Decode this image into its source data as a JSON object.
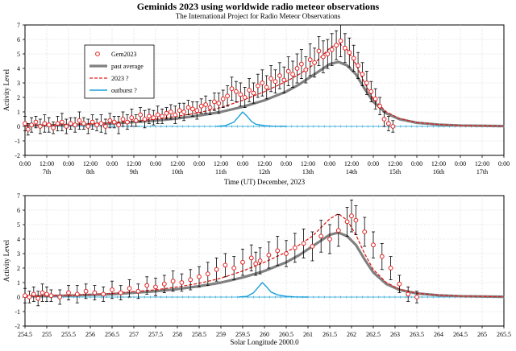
{
  "title": "Geminids  2023 using worldwide  radio  meteor observations",
  "subtitle": "The International Project for Radio Meteor Observations",
  "legend": {
    "gem": "Gem2023",
    "past": "past average",
    "y2023": "2023 ?",
    "outburst": "outburst ?"
  },
  "colors": {
    "points": "#e02020",
    "past": "#808080",
    "y2023": "#e02020",
    "outburst": "#1aa0d8",
    "errorbars": "#000000"
  },
  "chart_data": [
    {
      "type": "line",
      "xlabel": "Time (UT) December, 2023",
      "ylabel": "Activity Level",
      "ylim": [
        -2,
        7
      ],
      "yticks": [
        "-2",
        "-1",
        "0",
        "1",
        "2",
        "3",
        "4",
        "5",
        "6",
        "7"
      ],
      "grid": true,
      "legend_position": "top-left",
      "x_tick_labels": [
        "0:00",
        "12:00",
        "0:00",
        "12:00",
        "0:00",
        "12:00",
        "0:00",
        "12:00",
        "0:00",
        "12:00",
        "0:00",
        "12:00",
        "0:00",
        "12:00",
        "0:00",
        "12:00",
        "0:00",
        "12:00",
        "0:00",
        "12:00",
        "0:00",
        "12:00",
        "0:00"
      ],
      "day_labels": [
        "7th",
        "8th",
        "9th",
        "10th",
        "11th",
        "12th",
        "13th",
        "14th",
        "15th",
        "16th",
        "17th"
      ],
      "xlim_days": [
        7.0,
        18.0
      ],
      "series": [
        {
          "name": "Gem2023",
          "kind": "points_with_errorbars",
          "x": [
            7.0,
            7.07,
            7.15,
            7.25,
            7.35,
            7.45,
            7.55,
            7.65,
            7.75,
            7.85,
            7.95,
            8.05,
            8.15,
            8.25,
            8.35,
            8.45,
            8.55,
            8.65,
            8.75,
            8.85,
            8.95,
            9.05,
            9.15,
            9.25,
            9.35,
            9.45,
            9.55,
            9.65,
            9.75,
            9.85,
            9.95,
            10.05,
            10.15,
            10.25,
            10.35,
            10.45,
            10.55,
            10.65,
            10.75,
            10.85,
            10.95,
            11.05,
            11.15,
            11.25,
            11.35,
            11.45,
            11.55,
            11.65,
            11.75,
            11.85,
            11.95,
            12.05,
            12.15,
            12.25,
            12.35,
            12.45,
            12.55,
            12.65,
            12.75,
            12.85,
            12.95,
            13.05,
            13.15,
            13.25,
            13.35,
            13.45,
            13.55,
            13.65,
            13.75,
            13.85,
            13.95,
            14.05,
            14.15,
            14.25,
            14.35,
            14.45,
            14.55,
            14.65,
            14.75,
            14.85,
            14.95,
            15.05,
            15.15,
            15.25,
            15.35,
            15.45
          ],
          "y": [
            0.2,
            -0.2,
            0.1,
            0.3,
            0.0,
            0.2,
            0.1,
            -0.1,
            0.2,
            0.3,
            0.0,
            0.2,
            0.1,
            0.4,
            0.2,
            0.0,
            0.3,
            0.1,
            0.2,
            0.0,
            0.4,
            0.3,
            0.1,
            0.5,
            0.3,
            0.6,
            0.4,
            0.8,
            0.5,
            0.7,
            0.6,
            0.8,
            0.7,
            0.9,
            1.0,
            0.8,
            1.1,
            1.0,
            1.3,
            1.2,
            1.1,
            1.4,
            1.5,
            1.3,
            1.7,
            1.6,
            1.9,
            2.1,
            2.6,
            2.4,
            2.2,
            2.0,
            2.5,
            2.3,
            2.8,
            3.0,
            2.7,
            3.3,
            3.1,
            3.5,
            3.2,
            3.8,
            3.6,
            4.0,
            4.3,
            3.9,
            4.6,
            4.4,
            5.2,
            4.8,
            5.0,
            5.3,
            5.6,
            5.9,
            5.4,
            5.1,
            4.7,
            4.2,
            3.6,
            3.0,
            2.4,
            1.9,
            1.4,
            0.5,
            0.2,
            0.0
          ],
          "err": [
            0.5,
            0.4,
            0.5,
            0.4,
            0.5,
            0.6,
            0.5,
            0.4,
            0.5,
            0.6,
            0.5,
            0.4,
            0.5,
            0.6,
            0.4,
            0.5,
            0.5,
            0.4,
            0.6,
            0.5,
            0.5,
            0.4,
            0.6,
            0.5,
            0.5,
            0.6,
            0.4,
            0.5,
            0.6,
            0.5,
            0.5,
            0.6,
            0.5,
            0.4,
            0.5,
            0.6,
            0.5,
            0.6,
            0.5,
            0.5,
            0.6,
            0.5,
            0.6,
            0.5,
            0.6,
            0.7,
            0.6,
            0.7,
            0.8,
            0.7,
            0.8,
            0.7,
            0.8,
            0.7,
            0.8,
            0.9,
            0.8,
            0.9,
            0.8,
            0.9,
            0.9,
            1.0,
            0.9,
            1.0,
            1.0,
            0.9,
            1.1,
            1.0,
            1.0,
            1.1,
            1.0,
            1.1,
            1.0,
            1.1,
            1.0,
            1.0,
            0.9,
            0.9,
            0.8,
            0.8,
            0.7,
            0.7,
            0.6,
            0.5,
            0.5,
            0.4
          ]
        },
        {
          "name": "past average",
          "kind": "line",
          "x": [
            7.0,
            8.0,
            9.0,
            10.0,
            10.5,
            11.0,
            11.5,
            12.0,
            12.5,
            13.0,
            13.3,
            13.6,
            13.8,
            14.0,
            14.2,
            14.4,
            14.6,
            14.8,
            15.0,
            15.3,
            15.6,
            16.0,
            16.5,
            17.0,
            18.0
          ],
          "y": [
            0.05,
            0.1,
            0.2,
            0.4,
            0.55,
            0.75,
            1.0,
            1.35,
            1.8,
            2.4,
            2.9,
            3.5,
            3.9,
            4.3,
            4.45,
            4.2,
            3.6,
            2.6,
            1.7,
            0.9,
            0.5,
            0.25,
            0.12,
            0.06,
            0.02
          ]
        },
        {
          "name": "2023 ?",
          "kind": "dashed_line",
          "x": [
            7.0,
            8.0,
            9.0,
            10.0,
            10.5,
            11.0,
            11.5,
            12.0,
            12.5,
            13.0,
            13.3,
            13.6,
            13.8,
            14.0,
            14.2,
            14.4,
            14.6,
            14.8,
            15.0,
            15.3,
            15.6,
            16.0,
            16.5,
            17.0,
            18.0
          ],
          "y": [
            0.05,
            0.12,
            0.25,
            0.5,
            0.7,
            0.95,
            1.3,
            1.8,
            2.4,
            3.1,
            3.6,
            4.2,
            4.8,
            5.4,
            5.75,
            5.3,
            4.3,
            3.0,
            1.9,
            1.0,
            0.55,
            0.27,
            0.13,
            0.07,
            0.02
          ]
        },
        {
          "name": "outburst ?",
          "kind": "line",
          "x": [
            11.4,
            11.6,
            11.8,
            11.9,
            12.0,
            12.1,
            12.2,
            12.3,
            12.5,
            12.7,
            13.0
          ],
          "y": [
            0.0,
            0.05,
            0.3,
            0.65,
            1.0,
            0.7,
            0.35,
            0.15,
            0.05,
            0.01,
            0.0
          ]
        }
      ]
    },
    {
      "type": "line",
      "xlabel": "Solar Longitude 2000.0",
      "ylabel": "Activity Level",
      "ylim": [
        -2,
        7
      ],
      "yticks": [
        "-2",
        "-1",
        "0",
        "1",
        "2",
        "3",
        "4",
        "5",
        "6",
        "7"
      ],
      "xlim": [
        254.5,
        265.5
      ],
      "x_tick_labels": [
        "254.5",
        "255",
        "255.5",
        "256",
        "256.5",
        "257",
        "257.5",
        "258",
        "258.5",
        "259",
        "259.5",
        "260",
        "260.5",
        "261",
        "261.5",
        "262",
        "262.5",
        "263",
        "263.5",
        "264",
        "264.5",
        "265",
        "265.5"
      ],
      "grid": true,
      "series": [
        {
          "name": "Gem2023",
          "kind": "points_with_errorbars",
          "x": [
            254.5,
            254.6,
            254.7,
            254.8,
            254.9,
            255.0,
            255.1,
            255.3,
            255.5,
            255.7,
            255.9,
            256.1,
            256.3,
            256.5,
            256.7,
            256.9,
            257.1,
            257.3,
            257.5,
            257.7,
            257.9,
            258.1,
            258.3,
            258.5,
            258.7,
            258.9,
            259.1,
            259.3,
            259.5,
            259.7,
            259.8,
            259.9,
            260.1,
            260.3,
            260.5,
            260.7,
            260.9,
            261.1,
            261.3,
            261.5,
            261.7,
            261.9,
            262.0,
            262.1,
            262.3,
            262.5,
            262.7,
            262.9,
            263.1,
            263.3,
            263.5
          ],
          "y": [
            0.1,
            0.0,
            0.2,
            -0.1,
            0.3,
            0.2,
            0.1,
            0.0,
            0.3,
            0.2,
            0.4,
            0.3,
            0.2,
            0.5,
            0.3,
            0.6,
            0.4,
            0.8,
            0.7,
            0.9,
            1.1,
            1.0,
            1.2,
            1.4,
            1.6,
            1.9,
            2.2,
            2.0,
            2.4,
            2.7,
            2.3,
            2.5,
            2.9,
            3.2,
            3.0,
            3.4,
            3.7,
            3.5,
            4.2,
            4.0,
            4.6,
            5.2,
            5.6,
            5.3,
            4.5,
            3.6,
            2.8,
            2.0,
            0.9,
            0.2,
            0.0
          ],
          "err": [
            0.5,
            0.4,
            0.5,
            0.5,
            0.6,
            0.5,
            0.4,
            0.5,
            0.5,
            0.6,
            0.5,
            0.5,
            0.5,
            0.6,
            0.5,
            0.6,
            0.5,
            0.6,
            0.6,
            0.6,
            0.7,
            0.6,
            0.7,
            0.7,
            0.8,
            0.8,
            0.8,
            0.8,
            0.9,
            0.9,
            0.8,
            0.9,
            0.9,
            1.0,
            0.9,
            1.0,
            1.0,
            1.0,
            1.1,
            1.0,
            1.1,
            1.0,
            1.1,
            1.0,
            1.0,
            0.9,
            0.9,
            0.8,
            0.6,
            0.5,
            0.4
          ]
        },
        {
          "name": "past average",
          "kind": "line",
          "x": [
            254.5,
            255.5,
            256.5,
            257.5,
            258.0,
            258.5,
            259.0,
            259.5,
            260.0,
            260.5,
            260.8,
            261.1,
            261.3,
            261.5,
            261.7,
            261.9,
            262.1,
            262.3,
            262.5,
            262.8,
            263.1,
            263.5,
            264.0,
            264.5,
            265.5
          ],
          "y": [
            0.05,
            0.1,
            0.2,
            0.4,
            0.55,
            0.75,
            1.0,
            1.35,
            1.8,
            2.4,
            2.9,
            3.5,
            3.9,
            4.3,
            4.45,
            4.2,
            3.6,
            2.6,
            1.7,
            0.9,
            0.5,
            0.25,
            0.12,
            0.06,
            0.02
          ]
        },
        {
          "name": "2023 ?",
          "kind": "dashed_line",
          "x": [
            254.5,
            255.5,
            256.5,
            257.5,
            258.0,
            258.5,
            259.0,
            259.5,
            260.0,
            260.5,
            260.8,
            261.1,
            261.3,
            261.5,
            261.7,
            261.9,
            262.1,
            262.3,
            262.5,
            262.8,
            263.1,
            263.5,
            264.0,
            264.5,
            265.5
          ],
          "y": [
            0.05,
            0.12,
            0.25,
            0.5,
            0.7,
            0.95,
            1.3,
            1.8,
            2.4,
            3.1,
            3.6,
            4.2,
            4.8,
            5.4,
            5.75,
            5.3,
            4.3,
            3.0,
            1.9,
            1.0,
            0.55,
            0.27,
            0.13,
            0.07,
            0.02
          ]
        },
        {
          "name": "outburst ?",
          "kind": "line",
          "x": [
            259.4,
            259.6,
            259.75,
            259.85,
            259.95,
            260.05,
            260.15,
            260.3,
            260.5,
            260.7,
            261.0
          ],
          "y": [
            0.0,
            0.05,
            0.3,
            0.65,
            1.0,
            0.7,
            0.35,
            0.15,
            0.05,
            0.01,
            0.0
          ]
        }
      ]
    }
  ]
}
